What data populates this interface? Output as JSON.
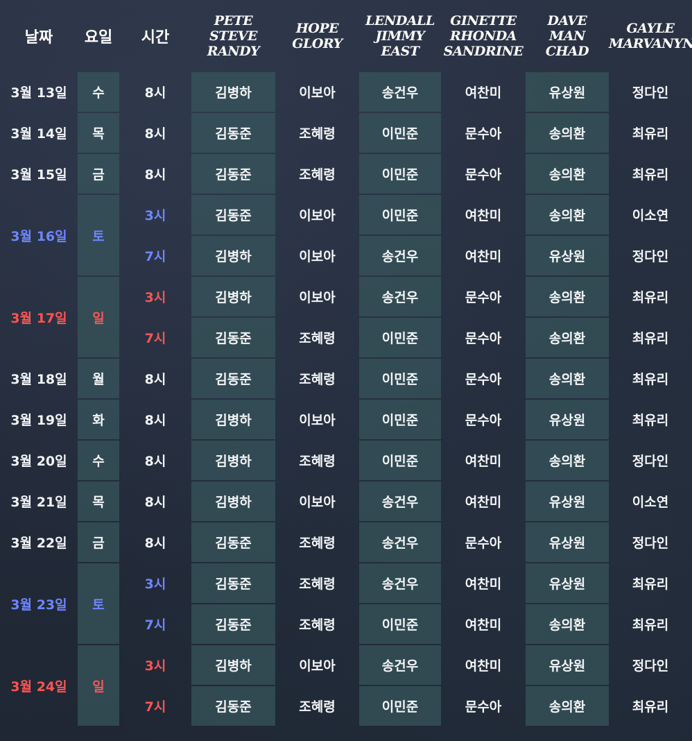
{
  "headers": {
    "date": "날짜",
    "weekday": "요일",
    "time": "시간",
    "col1": [
      "PETE",
      "STEVE",
      "RANDY"
    ],
    "col2": [
      "HOPE",
      "GLORY"
    ],
    "col3": [
      "LENDALL",
      "JIMMY",
      "EAST"
    ],
    "col4": [
      "GINETTE",
      "RHONDA",
      "SANDRINE"
    ],
    "col5": [
      "DAVE",
      "MAN",
      "CHAD"
    ],
    "col6": [
      "GAYLE",
      "MARVANYN"
    ]
  },
  "colors": {
    "saturday": "#6f86ff",
    "sunday": "#ff5454",
    "cell_tint": "#38565c"
  },
  "rows": [
    {
      "date": "3월 13일",
      "weekday": "수",
      "day_type": "weekday",
      "times": [
        {
          "time": "8시",
          "cast": [
            "김병하",
            "이보아",
            "송건우",
            "여찬미",
            "유상원",
            "정다인"
          ]
        }
      ]
    },
    {
      "date": "3월 14일",
      "weekday": "목",
      "day_type": "weekday",
      "times": [
        {
          "time": "8시",
          "cast": [
            "김동준",
            "조혜령",
            "이민준",
            "문수아",
            "송의환",
            "최유리"
          ]
        }
      ]
    },
    {
      "date": "3월 15일",
      "weekday": "금",
      "day_type": "weekday",
      "times": [
        {
          "time": "8시",
          "cast": [
            "김동준",
            "조혜령",
            "이민준",
            "문수아",
            "송의환",
            "최유리"
          ]
        }
      ]
    },
    {
      "date": "3월 16일",
      "weekday": "토",
      "day_type": "saturday",
      "times": [
        {
          "time": "3시",
          "cast": [
            "김동준",
            "이보아",
            "이민준",
            "여찬미",
            "송의환",
            "이소연"
          ]
        },
        {
          "time": "7시",
          "cast": [
            "김병하",
            "이보아",
            "송건우",
            "여찬미",
            "유상원",
            "정다인"
          ]
        }
      ]
    },
    {
      "date": "3월 17일",
      "weekday": "일",
      "day_type": "sunday",
      "times": [
        {
          "time": "3시",
          "cast": [
            "김병하",
            "이보아",
            "송건우",
            "문수아",
            "송의환",
            "최유리"
          ]
        },
        {
          "time": "7시",
          "cast": [
            "김동준",
            "조혜령",
            "이민준",
            "문수아",
            "송의환",
            "최유리"
          ]
        }
      ]
    },
    {
      "date": "3월 18일",
      "weekday": "월",
      "day_type": "weekday",
      "times": [
        {
          "time": "8시",
          "cast": [
            "김동준",
            "조혜령",
            "이민준",
            "문수아",
            "송의환",
            "최유리"
          ]
        }
      ]
    },
    {
      "date": "3월 19일",
      "weekday": "화",
      "day_type": "weekday",
      "times": [
        {
          "time": "8시",
          "cast": [
            "김병하",
            "이보아",
            "이민준",
            "문수아",
            "유상원",
            "최유리"
          ]
        }
      ]
    },
    {
      "date": "3월 20일",
      "weekday": "수",
      "day_type": "weekday",
      "times": [
        {
          "time": "8시",
          "cast": [
            "김병하",
            "조혜령",
            "이민준",
            "여찬미",
            "송의환",
            "정다인"
          ]
        }
      ]
    },
    {
      "date": "3월 21일",
      "weekday": "목",
      "day_type": "weekday",
      "times": [
        {
          "time": "8시",
          "cast": [
            "김병하",
            "이보아",
            "송건우",
            "여찬미",
            "유상원",
            "이소연"
          ]
        }
      ]
    },
    {
      "date": "3월 22일",
      "weekday": "금",
      "day_type": "weekday",
      "times": [
        {
          "time": "8시",
          "cast": [
            "김동준",
            "조혜령",
            "송건우",
            "문수아",
            "유상원",
            "정다인"
          ]
        }
      ]
    },
    {
      "date": "3월 23일",
      "weekday": "토",
      "day_type": "saturday",
      "times": [
        {
          "time": "3시",
          "cast": [
            "김동준",
            "조혜령",
            "송건우",
            "여찬미",
            "유상원",
            "최유리"
          ]
        },
        {
          "time": "7시",
          "cast": [
            "김동준",
            "조혜령",
            "이민준",
            "여찬미",
            "송의환",
            "최유리"
          ]
        }
      ]
    },
    {
      "date": "3월 24일",
      "weekday": "일",
      "day_type": "sunday",
      "times": [
        {
          "time": "3시",
          "cast": [
            "김병하",
            "이보아",
            "송건우",
            "여찬미",
            "유상원",
            "정다인"
          ]
        },
        {
          "time": "7시",
          "cast": [
            "김동준",
            "조혜령",
            "이민준",
            "문수아",
            "송의환",
            "최유리"
          ]
        }
      ]
    }
  ]
}
